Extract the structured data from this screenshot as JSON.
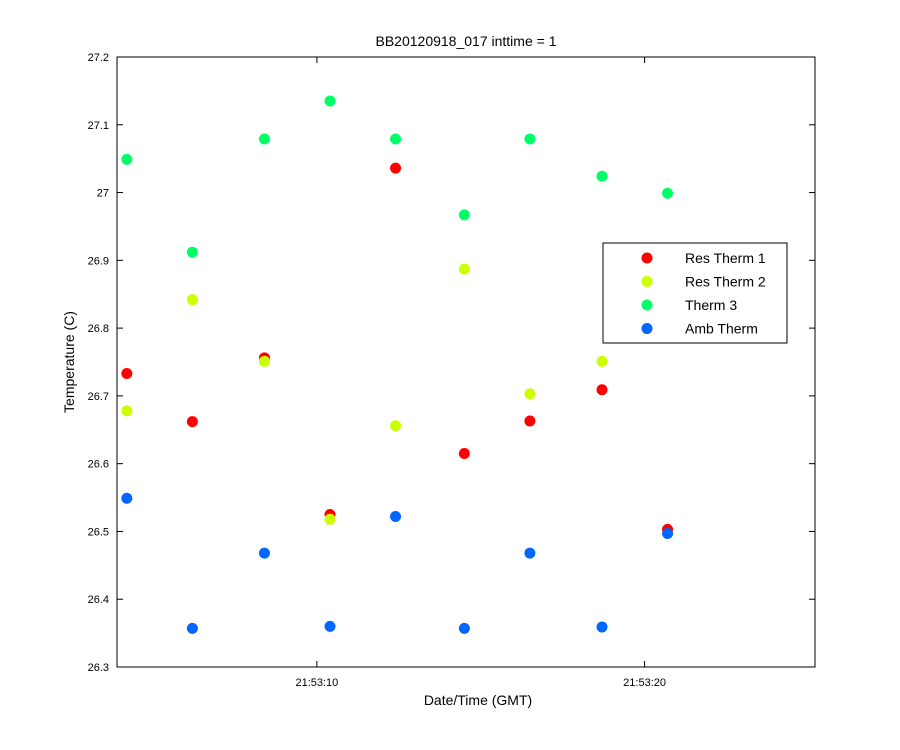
{
  "chart_data": {
    "type": "scatter",
    "title": "BB20120918_017 inttime = 1",
    "xlabel": "Date/Time (GMT)",
    "ylabel": "Temperature (C)",
    "xlim": [
      "21:53:03.9",
      "21:53:25.2"
    ],
    "ylim": [
      26.3,
      27.2
    ],
    "xticks": [
      "21:53:10",
      "21:53:20"
    ],
    "yticks": [
      26.3,
      26.4,
      26.5,
      26.6,
      26.7,
      26.8,
      26.9,
      27.0,
      27.1,
      27.2
    ],
    "ytick_labels": [
      "26.3",
      "26.4",
      "26.5",
      "26.6",
      "26.7",
      "26.8",
      "26.9",
      "27",
      "27.1",
      "27.2"
    ],
    "grid": false,
    "legend_position": "right",
    "x": [
      "21:53:04.2",
      "21:53:06.2",
      "21:53:08.4",
      "21:53:10.4",
      "21:53:12.4",
      "21:53:14.5",
      "21:53:16.5",
      "21:53:18.7",
      "21:53:20.7"
    ],
    "series": [
      {
        "name": "Res Therm 1",
        "color": "#ff0000",
        "y": [
          26.733,
          26.662,
          26.756,
          26.525,
          27.036,
          26.615,
          26.663,
          26.709,
          26.503
        ]
      },
      {
        "name": "Res Therm 2",
        "color": "#ccff00",
        "y": [
          26.678,
          26.842,
          26.751,
          26.518,
          26.656,
          26.887,
          26.703,
          26.751,
          null
        ]
      },
      {
        "name": "Therm 3",
        "color": "#00ff66",
        "y": [
          27.049,
          26.912,
          27.079,
          27.135,
          27.079,
          26.967,
          27.079,
          27.024,
          26.999
        ]
      },
      {
        "name": "Amb Therm",
        "color": "#0066ff",
        "y": [
          26.549,
          26.357,
          26.468,
          26.36,
          26.522,
          26.357,
          26.468,
          26.359,
          26.497
        ]
      }
    ]
  }
}
